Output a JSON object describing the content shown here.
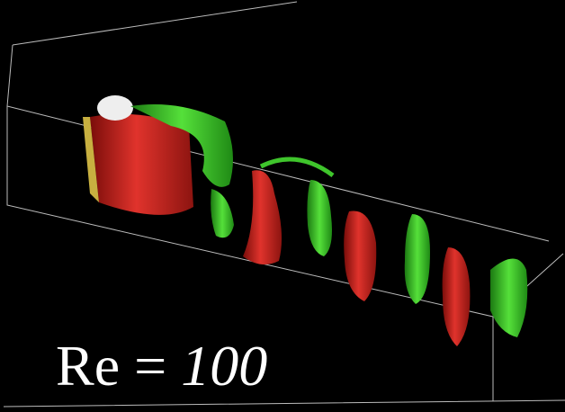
{
  "label": {
    "symbol": "Re",
    "equals": "=",
    "value": "100"
  }
}
